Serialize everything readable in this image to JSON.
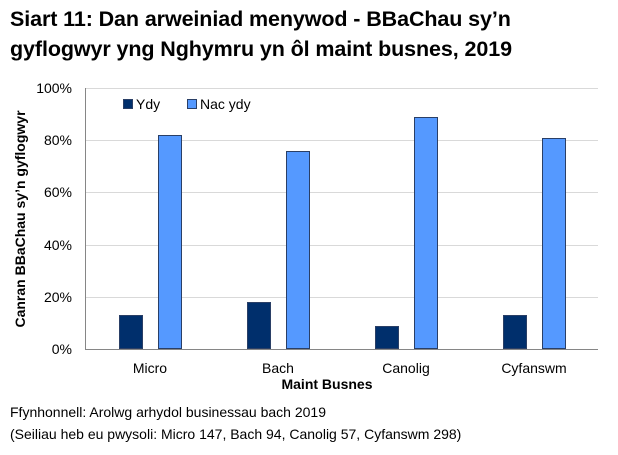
{
  "title": "Siart 11: Dan arweiniad menywod - BBaChau sy’n gyflogwyr yng Nghymru yn ôl maint busnes, 2019",
  "title_lines": [
    "Siart 11: Dan arweiniad menywod - BBaChau sy’n",
    "gyflogwyr yng Nghymru yn ôl maint busnes, 2019"
  ],
  "y_axis_label": "Canran BBaChau sy’n gyflogwyr",
  "x_axis_label": "Maint Busnes",
  "y_ticks": [
    "100%",
    "80%",
    "60%",
    "40%",
    "20%",
    "0%"
  ],
  "legend": [
    {
      "label": "Ydy",
      "color": "#002F6C"
    },
    {
      "label": "Nac ydy",
      "color": "#5599FF"
    }
  ],
  "source": "Ffynhonnell: Arolwg arhydol businessau bach 2019",
  "base_note": "(Seiliau heb eu pwysoli: Micro 147, Bach 94, Canolig 57, Cyfanswm 298)",
  "chart_data": {
    "type": "bar",
    "title": "Siart 11: Dan arweiniad menywod - BBaChau sy’n gyflogwyr yng Nghymru yn ôl maint busnes, 2019",
    "xlabel": "Maint Busnes",
    "ylabel": "Canran BBaChau sy’n gyflogwyr",
    "categories": [
      "Micro",
      "Bach",
      "Canolig",
      "Cyfanswm"
    ],
    "series": [
      {
        "name": "Ydy",
        "color": "#002F6C",
        "values": [
          13,
          18,
          9,
          13
        ]
      },
      {
        "name": "Nac ydy",
        "color": "#5599FF",
        "values": [
          82,
          76,
          89,
          81
        ]
      }
    ],
    "ylim": [
      0,
      100
    ],
    "y_tick_format": "percent",
    "y_ticks": [
      0,
      20,
      40,
      60,
      80,
      100
    ],
    "grid": true,
    "legend_position": "top-left inside plot"
  }
}
